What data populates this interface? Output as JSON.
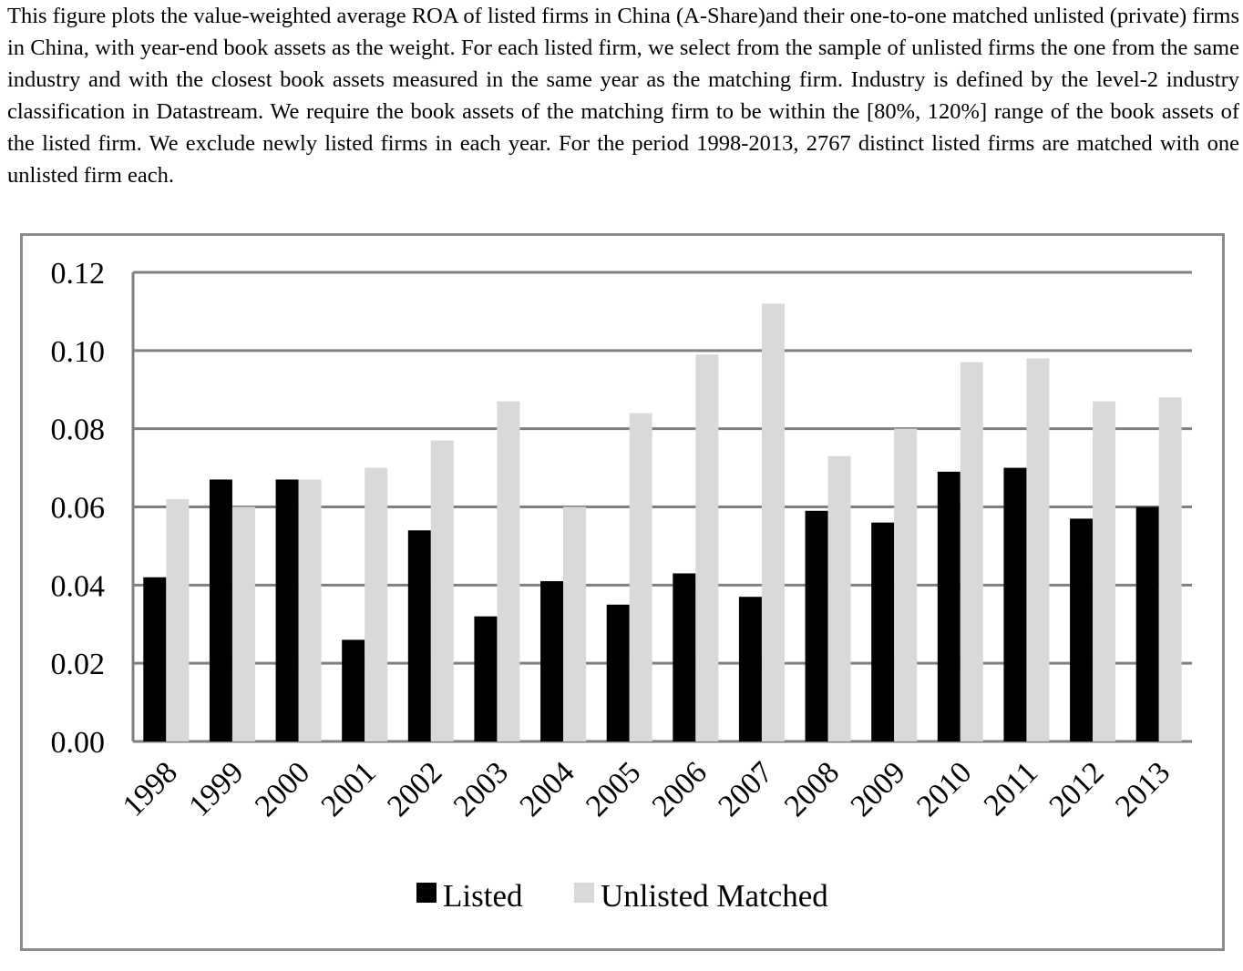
{
  "caption": "This figure plots the value-weighted average ROA of listed firms in China (A-Share)and their one-to-one matched unlisted (private) firms in China, with year-end book assets as the weight. For each listed firm, we select from the sample of unlisted firms the one from the same industry and with the closest book assets measured in the same year as the matching firm. Industry is defined by the level-2 industry classification in Datastream. We require the book assets of the matching firm to be within the [80%, 120%] range of the book assets of the listed firm. We exclude newly listed firms in each year. For the period 1998-2013, 2767 distinct listed firms are matched with one unlisted firm each.",
  "chart_data": {
    "type": "bar",
    "title": "",
    "xlabel": "",
    "ylabel": "",
    "categories": [
      "1998",
      "1999",
      "2000",
      "2001",
      "2002",
      "2003",
      "2004",
      "2005",
      "2006",
      "2007",
      "2008",
      "2009",
      "2010",
      "2011",
      "2012",
      "2013"
    ],
    "series": [
      {
        "name": "Listed",
        "color": "#000000",
        "values": [
          0.042,
          0.067,
          0.067,
          0.026,
          0.054,
          0.032,
          0.041,
          0.035,
          0.043,
          0.037,
          0.059,
          0.056,
          0.069,
          0.07,
          0.057,
          0.06
        ]
      },
      {
        "name": "Unlisted Matched",
        "color": "#d9d9d9",
        "values": [
          0.062,
          0.06,
          0.067,
          0.07,
          0.077,
          0.087,
          0.06,
          0.084,
          0.099,
          0.112,
          0.073,
          0.08,
          0.097,
          0.098,
          0.087,
          0.088
        ]
      }
    ],
    "ylim": [
      0,
      0.12
    ],
    "yticks": [
      "0.00",
      "0.02",
      "0.04",
      "0.06",
      "0.08",
      "0.10",
      "0.12"
    ],
    "ytick_values": [
      0,
      0.02,
      0.04,
      0.06,
      0.08,
      0.1,
      0.12
    ],
    "grid": true,
    "legend_position": "bottom-center",
    "gridline_color": "#7f7f7f",
    "frame_color": "#8c8c8c"
  }
}
